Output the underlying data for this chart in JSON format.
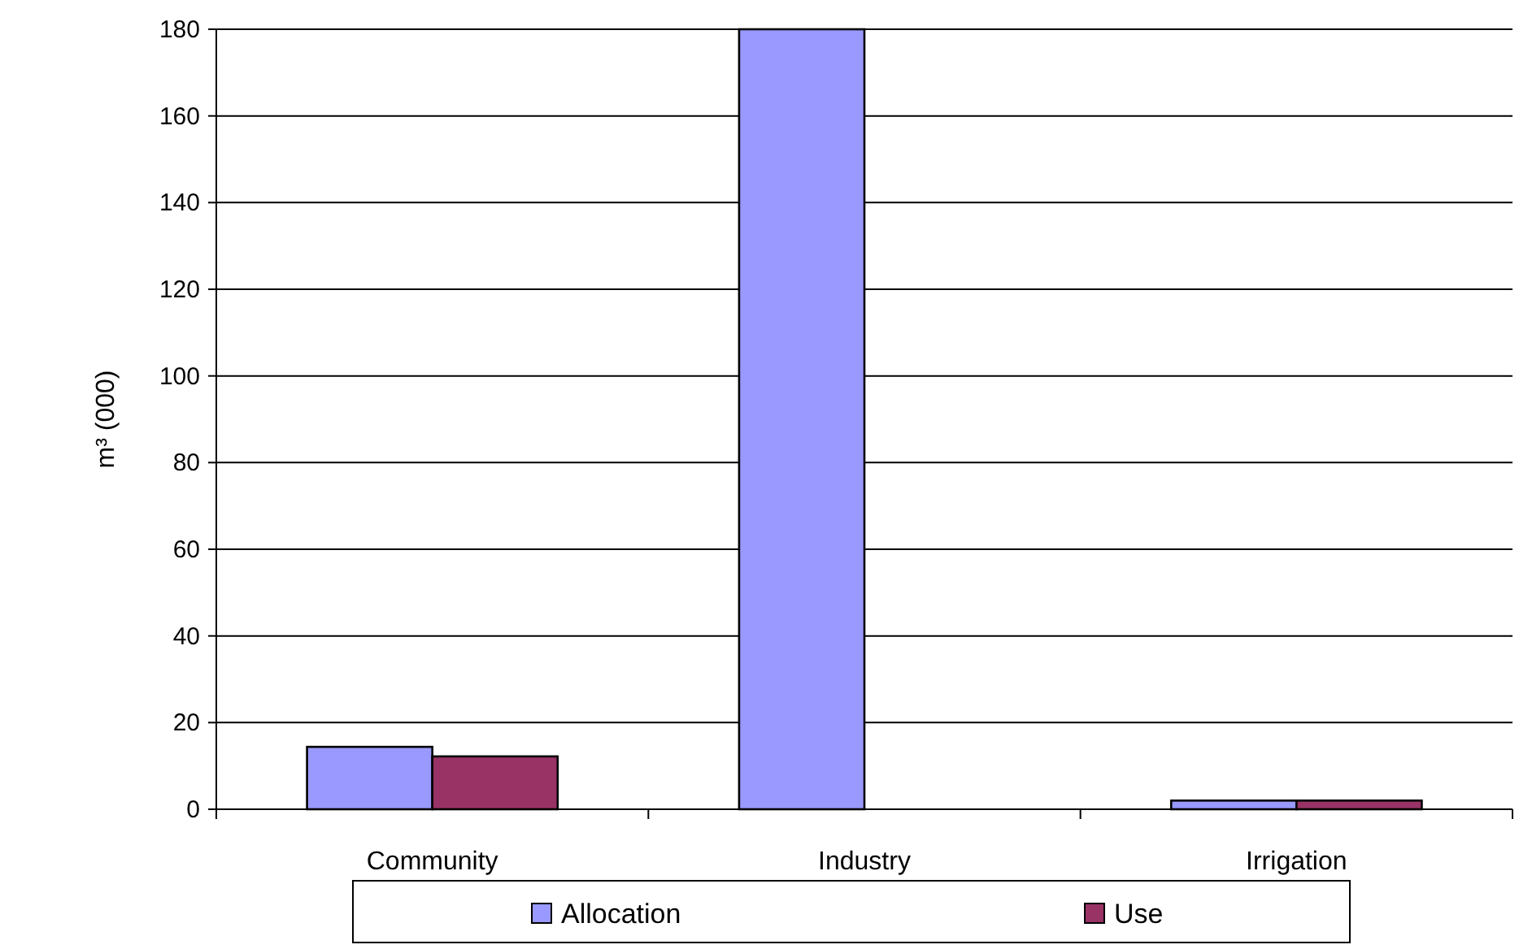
{
  "chart_data": {
    "type": "bar",
    "ylabel": "m³ (000)",
    "categories": [
      "Community",
      "Industry",
      "Irrigation"
    ],
    "series": [
      {
        "name": "Allocation",
        "color": "#9999ff",
        "values": [
          14.4,
          180,
          2
        ]
      },
      {
        "name": "Use",
        "color": "#993366",
        "values": [
          12.2,
          0,
          2
        ]
      }
    ],
    "ylim": [
      0,
      180
    ],
    "yticks": [
      0,
      20,
      40,
      60,
      80,
      100,
      120,
      140,
      160,
      180
    ],
    "grid": "y",
    "legend": "bottom"
  }
}
